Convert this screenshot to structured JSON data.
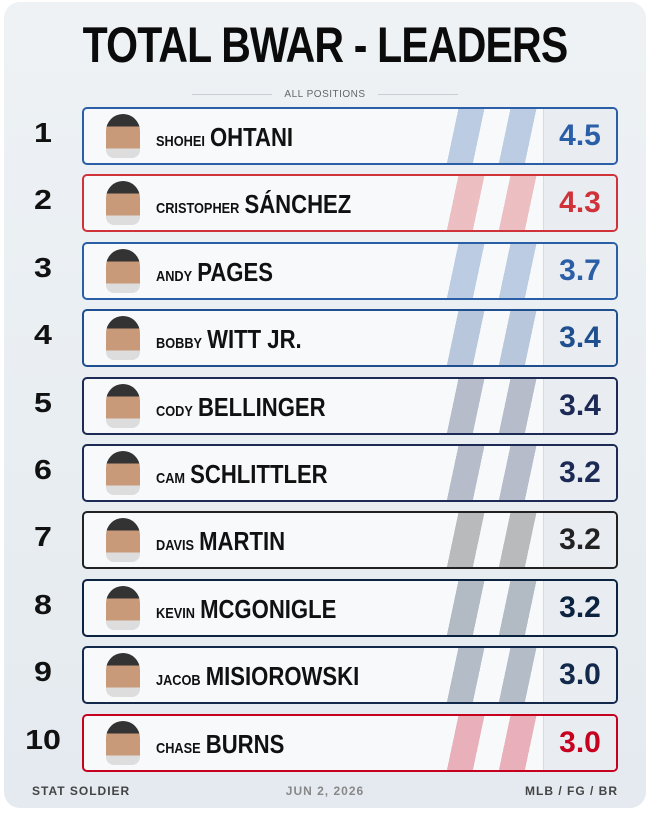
{
  "header": {
    "title": "TOTAL BWAR - LEADERS",
    "subtitle": "ALL POSITIONS"
  },
  "rows": [
    {
      "rank": 1,
      "first": "SHOHEI",
      "last": "OHTANI",
      "value": "4.5",
      "color": "#2a5fa8"
    },
    {
      "rank": 2,
      "first": "CRISTOPHER",
      "last": "SÁNCHEZ",
      "value": "4.3",
      "color": "#d0323a"
    },
    {
      "rank": 3,
      "first": "ANDY",
      "last": "PAGES",
      "value": "3.7",
      "color": "#2a5fa8"
    },
    {
      "rank": 4,
      "first": "BOBBY",
      "last": "WITT JR.",
      "value": "3.4",
      "color": "#1f4f8f"
    },
    {
      "rank": 5,
      "first": "CODY",
      "last": "BELLINGER",
      "value": "3.4",
      "color": "#1c2a55"
    },
    {
      "rank": 6,
      "first": "CAM",
      "last": "SCHLITTLER",
      "value": "3.2",
      "color": "#1c2a55"
    },
    {
      "rank": 7,
      "first": "DAVIS",
      "last": "MARTIN",
      "value": "3.2",
      "color": "#222222"
    },
    {
      "rank": 8,
      "first": "KEVIN",
      "last": "MCGONIGLE",
      "value": "3.2",
      "color": "#0c2340"
    },
    {
      "rank": 9,
      "first": "JACOB",
      "last": "MISIOROWSKI",
      "value": "3.0",
      "color": "#13294b"
    },
    {
      "rank": 10,
      "first": "CHASE",
      "last": "BURNS",
      "value": "3.0",
      "color": "#c6011f"
    }
  ],
  "footer": {
    "left": "STAT SOLDIER",
    "center": "JUN 2, 2026",
    "right": "MLB / FG / BR"
  }
}
